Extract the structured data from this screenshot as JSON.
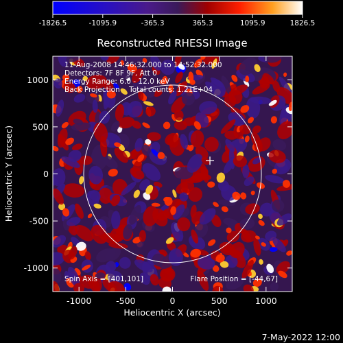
{
  "chart_data": {
    "type": "heatmap",
    "title": "Reconstructed RHESSI Image",
    "xlabel": "Heliocentric X (arcsec)",
    "ylabel": "Heliocentric Y (arcsec)",
    "xlim": [
      -1280,
      1280
    ],
    "ylim": [
      -1250,
      1250
    ],
    "x_ticks": [
      -1000,
      -500,
      0,
      500,
      1000
    ],
    "y_ticks": [
      -1000,
      -500,
      0,
      500,
      1000
    ],
    "colorbar": {
      "min": -1826.5,
      "max": 1826.5,
      "ticks": [
        "-1826.5",
        "-1095.9",
        "-365.3",
        "365.3",
        "1095.9",
        "1826.5"
      ]
    },
    "colors": {
      "negative_max": "#0000ff",
      "negative_mid": "#3a1a8a",
      "zero": "#3a1a5a",
      "positive_low": "#b00000",
      "positive_mid": "#ff3000",
      "positive_high": "#ffcc30",
      "positive_max": "#ffffff"
    },
    "solar_limb_radius_arcsec": 950,
    "solar_limb_center": [
      0,
      0
    ],
    "flare_marker": [
      400,
      140
    ],
    "info_lines": [
      "11-Aug-2008 14:46:32.000 to 14:52:32.000",
      "Detectors: 7F 8F 9F, Att 0",
      "Energy Range: 6.0 - 12.0 keV",
      "Back Projection    Total counts: 1.21E+04"
    ],
    "spin_axis": "Spin Axis = [401,101]",
    "flare_position": "Flare Position = [-44,67]"
  },
  "footer": {
    "timestamp": "7-May-2022 12:00"
  }
}
